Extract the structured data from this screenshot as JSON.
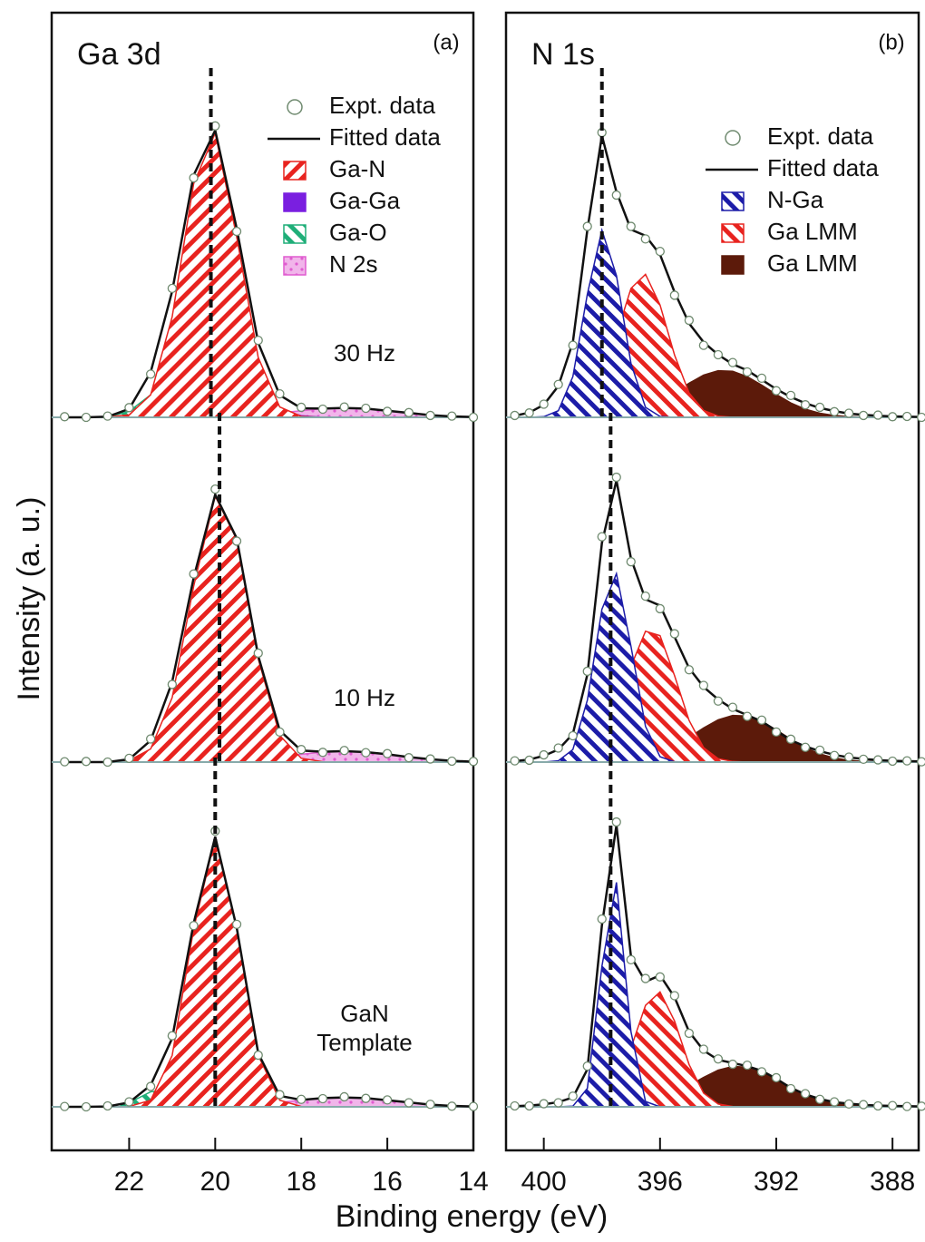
{
  "figure": {
    "xlabel": "Binding energy (eV)",
    "ylabel": "Intensity (a. u.)"
  },
  "chart_data": [
    {
      "type": "area",
      "title": "Ga 3d",
      "panel_label": "(a)",
      "x": [
        23.5,
        23,
        22.5,
        22,
        21.5,
        21,
        20.5,
        20,
        19.5,
        19,
        18.5,
        18,
        17.5,
        17,
        16.5,
        16,
        15.5,
        15,
        14.5,
        14
      ],
      "xlim": [
        23.8,
        14
      ],
      "xticks": [
        22,
        20,
        18,
        16,
        14
      ],
      "ylim": [
        0,
        100
      ],
      "expt": {
        "name": "Expt. data",
        "color": "#6f8a6f"
      },
      "fit": {
        "name": "Fitted data",
        "color": "#111111"
      },
      "components": [
        {
          "name": "Ga-N",
          "color": "#e8231f",
          "pattern": "hatch-right"
        },
        {
          "name": "Ga-Ga",
          "color": "#7a1fe0",
          "pattern": "solid"
        },
        {
          "name": "Ga-O",
          "color": "#1fae78",
          "pattern": "hatch-left"
        },
        {
          "name": "N 2s",
          "color": "#e05cd0",
          "pattern": "dots"
        }
      ],
      "spectra": [
        {
          "label": "30 Hz",
          "peak": 20.1,
          "expt": [
            0.2,
            0,
            0.4,
            3.1,
            13.8,
            41.2,
            76.5,
            93.1,
            59.4,
            24.6,
            7.5,
            3.2,
            2.6,
            3.3,
            2.9,
            1.9,
            1.5,
            0.6,
            0.4,
            0
          ],
          "fit": [
            0,
            0,
            0.2,
            2.7,
            14.4,
            40.3,
            77.4,
            91.7,
            60.3,
            23.8,
            7.1,
            2.9,
            2.8,
            3,
            2.8,
            2.1,
            1.4,
            0.7,
            0.3,
            0.1
          ],
          "components": [
            [
              0,
              0,
              0.1,
              0.8,
              7.2,
              32.1,
              74.7,
              90.8,
              57.6,
              19.1,
              3.3,
              0.3,
              0,
              0,
              0,
              0,
              0,
              0,
              0,
              0
            ],
            [
              0,
              0,
              0,
              0,
              0,
              0,
              0,
              0.5,
              2.4,
              4,
              2.4,
              0.5,
              0,
              0,
              0,
              0,
              0,
              0,
              0,
              0
            ],
            [
              0,
              0,
              0.1,
              1.9,
              7.2,
              8.2,
              2.7,
              0.3,
              0,
              0,
              0,
              0,
              0,
              0,
              0,
              0,
              0,
              0,
              0,
              0
            ],
            [
              0,
              0,
              0,
              0,
              0,
              0,
              0,
              0.1,
              0.3,
              0.7,
              1.4,
              2.1,
              2.8,
              3,
              2.8,
              2.1,
              1.4,
              0.7,
              0.3,
              0.1
            ]
          ]
        },
        {
          "label": "10 Hz",
          "peak": 19.9,
          "expt": [
            0.1,
            0.2,
            0,
            1.2,
            7.4,
            24.8,
            60.1,
            87.2,
            70.6,
            34.8,
            9.6,
            4,
            3.1,
            3.7,
            3,
            2.7,
            1.4,
            1,
            0.3,
            0.2
          ],
          "fit": [
            0,
            0,
            0,
            0.9,
            6.9,
            25.6,
            58.9,
            85.5,
            71.5,
            33.9,
            10.1,
            3.7,
            3.3,
            3.5,
            3.2,
            2.5,
            1.6,
            0.9,
            0.4,
            0.1
          ],
          "components": [
            [
              0,
              0,
              0,
              0.5,
              4.2,
              20.6,
              56.2,
              85,
              71.1,
              33,
              8.5,
              1.2,
              0.1,
              0,
              0,
              0,
              0,
              0,
              0,
              0
            ],
            [
              0,
              0,
              0,
              0,
              0,
              0,
              0,
              0,
              0,
              0,
              0,
              0,
              0,
              0,
              0,
              0,
              0,
              0,
              0,
              0
            ],
            [
              0,
              0,
              0,
              0.4,
              2.7,
              5,
              2.7,
              0.4,
              0,
              0,
              0,
              0,
              0,
              0,
              0,
              0,
              0,
              0,
              0,
              0
            ],
            [
              0,
              0,
              0,
              0,
              0,
              0,
              0,
              0.1,
              0.4,
              0.9,
              1.6,
              2.5,
              3.2,
              3.5,
              3.2,
              2.5,
              1.6,
              0.9,
              0.4,
              0.1
            ]
          ]
        },
        {
          "label": "GaN Template",
          "peak": 20.0,
          "expt": [
            0.1,
            0,
            0.3,
            1.6,
            6.5,
            22.7,
            57.9,
            88.1,
            58.3,
            16.5,
            3.9,
            2.4,
            2.6,
            3.2,
            2.7,
            2.2,
            1.3,
            0.8,
            0.2,
            0.1
          ],
          "fit": [
            0,
            0,
            0.1,
            1.4,
            6.9,
            21.9,
            58.7,
            86.3,
            57.2,
            17.1,
            3.5,
            2.2,
            2.8,
            3,
            2.8,
            2.1,
            1.4,
            0.7,
            0.3,
            0.1
          ],
          "components": [
            [
              0,
              0,
              0,
              0.1,
              2.1,
              16.4,
              56.9,
              86,
              56.9,
              16.4,
              2.1,
              0.1,
              0,
              0,
              0,
              0,
              0,
              0,
              0,
              0
            ],
            [
              0,
              0,
              0,
              0,
              0,
              0,
              0,
              0,
              0,
              0,
              0,
              0,
              0,
              0,
              0,
              0,
              0,
              0,
              0,
              0
            ],
            [
              0,
              0,
              0.1,
              1.3,
              4.8,
              5.5,
              1.8,
              0.2,
              0,
              0,
              0,
              0,
              0,
              0,
              0,
              0,
              0,
              0,
              0,
              0
            ],
            [
              0,
              0,
              0,
              0,
              0,
              0,
              0,
              0.1,
              0.3,
              0.7,
              1.4,
              2.1,
              2.8,
              3,
              2.8,
              2.1,
              1.4,
              0.7,
              0.3,
              0.1
            ]
          ]
        }
      ]
    },
    {
      "type": "area",
      "title": "N 1s",
      "panel_label": "(b)",
      "x": [
        401,
        400.5,
        400,
        399.5,
        399,
        398.5,
        398,
        397.5,
        397,
        396.5,
        396,
        395.5,
        395,
        394.5,
        394,
        393.5,
        393,
        392.5,
        392,
        391.5,
        391,
        390.5,
        390,
        389.5,
        389,
        388.5,
        388,
        387.5,
        387
      ],
      "xlim": [
        401.3,
        387.1
      ],
      "xticks": [
        400,
        396,
        392,
        388
      ],
      "ylim": [
        0,
        100
      ],
      "expt": {
        "name": "Expt. data",
        "color": "#6f8a6f"
      },
      "fit": {
        "name": "Fitted data",
        "color": "#111111"
      },
      "components": [
        {
          "name": "N-Ga",
          "color": "#1c1ca8",
          "pattern": "hatch-left"
        },
        {
          "name": "Ga LMM",
          "color": "#e8231f",
          "pattern": "hatch-left"
        },
        {
          "name": "Ga LMM",
          "color": "#5c1a0a",
          "pattern": "solid"
        }
      ],
      "spectra": [
        {
          "peak": 398.0,
          "expt": [
            0.6,
            1.4,
            4.2,
            10.5,
            23,
            61,
            91,
            71,
            61,
            57,
            53,
            39,
            31,
            23,
            20,
            17.5,
            14.5,
            12.5,
            8.5,
            7,
            4,
            3.2,
            1.8,
            1.3,
            0.6,
            0.7,
            0.2,
            0.3,
            0
          ],
          "fit": [
            0.5,
            1.5,
            4,
            10,
            24,
            60,
            90,
            72,
            60,
            58,
            52,
            40,
            30,
            24,
            20,
            17,
            15,
            12,
            9,
            6.5,
            4.5,
            3,
            2,
            1.2,
            0.8,
            0.5,
            0.3,
            0.2,
            0.1
          ],
          "components": [
            [
              0,
              0,
              0.2,
              2.1,
              13,
              39.4,
              59.8,
              45.3,
              17.2,
              3.2,
              0.3,
              0,
              0,
              0,
              0,
              0,
              0,
              0,
              0,
              0,
              0,
              0,
              0,
              0,
              0,
              0,
              0,
              0,
              0
            ],
            [
              0,
              0,
              0,
              0.1,
              0.8,
              3.8,
              11.8,
              26.3,
              41.2,
              45.7,
              35.9,
              19.9,
              7.8,
              2.2,
              0.4,
              0,
              0,
              0,
              0,
              0,
              0,
              0,
              0,
              0,
              0,
              0,
              0,
              0,
              0
            ],
            [
              0,
              0,
              0,
              0,
              0,
              0.1,
              0.3,
              0.7,
              1.5,
              3,
              5.1,
              7.9,
              10.9,
              13.5,
              14.9,
              14.7,
              13,
              10.3,
              7.3,
              4.6,
              2.6,
              1.3,
              0.6,
              0.2,
              0.1,
              0,
              0,
              0,
              0
            ]
          ]
        },
        {
          "peak": 397.7,
          "expt": [
            0.4,
            0.6,
            2.3,
            4.5,
            8.4,
            29,
            72,
            91,
            64,
            53,
            49,
            41,
            29.5,
            24.5,
            19.5,
            17.5,
            14.6,
            13.4,
            9.6,
            7.3,
            4.7,
            3.8,
            2.1,
            1.6,
            0.9,
            0.7,
            0.3,
            0.4,
            0.1
          ],
          "fit": [
            0.3,
            0.8,
            2,
            4,
            9,
            28,
            70,
            90,
            65,
            52,
            50,
            40,
            30,
            24,
            20,
            17,
            15,
            13,
            10,
            7,
            5,
            3.5,
            2.3,
            1.5,
            1,
            0.6,
            0.4,
            0.3,
            0.2
          ],
          "components": [
            [
              0,
              0,
              0,
              0.4,
              4,
              19.8,
              48.8,
              60.2,
              37,
              11.4,
              1.7,
              0.1,
              0,
              0,
              0,
              0,
              0,
              0,
              0,
              0,
              0,
              0,
              0,
              0,
              0,
              0,
              0,
              0,
              0
            ],
            [
              0,
              0,
              0,
              0,
              0.3,
              1.5,
              5.8,
              15.9,
              30.6,
              41.8,
              40.4,
              27.6,
              13.3,
              4.6,
              1.1,
              0.2,
              0,
              0,
              0,
              0,
              0,
              0,
              0,
              0,
              0,
              0,
              0,
              0,
              0
            ],
            [
              0,
              0,
              0,
              0,
              0,
              0,
              0.1,
              0.3,
              0.7,
              1.5,
              3,
              5.1,
              7.9,
              10.9,
              13.5,
              14.9,
              14.7,
              13,
              10.3,
              7.3,
              4.6,
              2.6,
              1.3,
              0.6,
              0.2,
              0.1,
              0,
              0,
              0
            ]
          ]
        },
        {
          "peak": 397.7,
          "expt": [
            0.3,
            0.3,
            1,
            1.3,
            3.4,
            13,
            60,
            91,
            47,
            41,
            41.5,
            35.5,
            23.5,
            18.4,
            15.3,
            13.6,
            13.3,
            11.2,
            9.3,
            5.8,
            4.2,
            2.4,
            1.6,
            0.9,
            0.7,
            0.3,
            0.4,
            0.1,
            0.2
          ],
          "fit": [
            0.2,
            0.4,
            0.8,
            1.5,
            3,
            12,
            58,
            90,
            48,
            40,
            42,
            35,
            24,
            18,
            15,
            14,
            13,
            11.5,
            9,
            6,
            4,
            2.5,
            1.5,
            1,
            0.6,
            0.4,
            0.3,
            0.2,
            0.1
          ],
          "components": [
            [
              0,
              0,
              0,
              0,
              0.2,
              5.9,
              44.9,
              71.7,
              24,
              1.7,
              0,
              0,
              0,
              0,
              0,
              0,
              0,
              0,
              0,
              0,
              0,
              0,
              0,
              0,
              0,
              0,
              0,
              0,
              0
            ],
            [
              0,
              0,
              0,
              0,
              0,
              0.3,
              1.8,
              7.2,
              18.8,
              32.4,
              36.7,
              27.4,
              13.5,
              4.4,
              0.9,
              0.1,
              0,
              0,
              0,
              0,
              0,
              0,
              0,
              0,
              0,
              0,
              0,
              0,
              0
            ],
            [
              0,
              0,
              0,
              0,
              0,
              0,
              0.1,
              0.3,
              0.6,
              1.3,
              2.6,
              4.4,
              6.8,
              9.4,
              11.7,
              12.9,
              12.7,
              11.3,
              8.9,
              6.3,
              4,
              2.3,
              1.1,
              0.5,
              0.2,
              0.1,
              0,
              0,
              0
            ]
          ]
        }
      ]
    }
  ]
}
